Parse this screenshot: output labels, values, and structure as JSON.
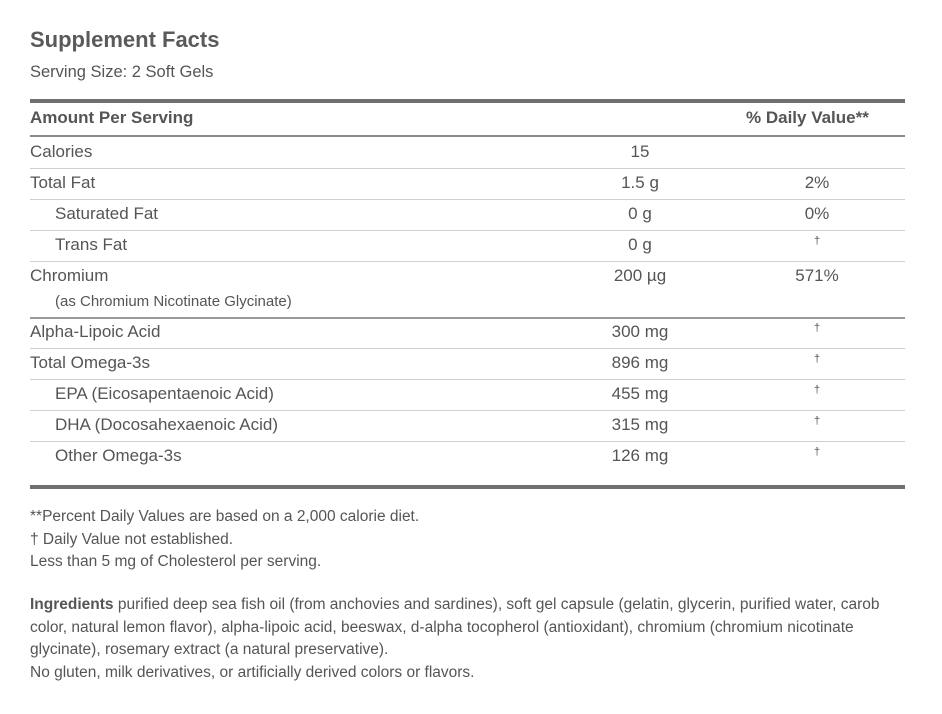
{
  "title": "Supplement Facts",
  "serving_size": "Serving Size: 2 Soft Gels",
  "table": {
    "header": {
      "amount": "Amount Per Serving",
      "daily_value": "% Daily Value**"
    },
    "rows": [
      {
        "name": "Calories",
        "amount": "15"
      },
      {
        "name": "Total Fat",
        "amount": "1.5 g",
        "dv": "2%"
      },
      {
        "name": "Saturated Fat",
        "amount": "0 g",
        "dv": "0%",
        "indent": true
      },
      {
        "name": "Trans Fat",
        "amount": "0 g",
        "dv": "†",
        "indent": true
      },
      {
        "name": "Chromium",
        "sub": "(as Chromium Nicotinate Glycinate)",
        "amount": "200 µg",
        "dv": "571%"
      },
      {
        "name": "Alpha-Lipoic Acid",
        "amount": "300 mg",
        "dv": "†"
      },
      {
        "name": "Total Omega-3s",
        "amount": "896 mg",
        "dv": "†"
      },
      {
        "name": "EPA (Eicosapentaenoic Acid)",
        "amount": "455 mg",
        "dv": "†",
        "indent": true
      },
      {
        "name": "DHA (Docosahexaenoic Acid)",
        "amount": "315 mg",
        "dv": "†",
        "indent": true
      },
      {
        "name": "Other Omega-3s",
        "amount": "126 mg",
        "dv": "†",
        "indent": true
      }
    ]
  },
  "footnotes": [
    "**Percent Daily Values are based on a 2,000 calorie diet.",
    "† Daily Value not established.",
    "Less than 5 mg of Cholesterol per serving."
  ],
  "ingredients": {
    "label": "Ingredients",
    "text": "purified deep sea fish oil (from anchovies and sardines), soft gel capsule (gelatin, glycerin, purified water, carob color, natural lemon flavor), alpha-lipoic acid, beeswax, d-alpha tocopherol (antioxidant), chromium (chromium nicotinate glycinate), rosemary extract (a natural preservative).",
    "note": "No gluten, milk derivatives, or artificially derived colors or flavors."
  }
}
